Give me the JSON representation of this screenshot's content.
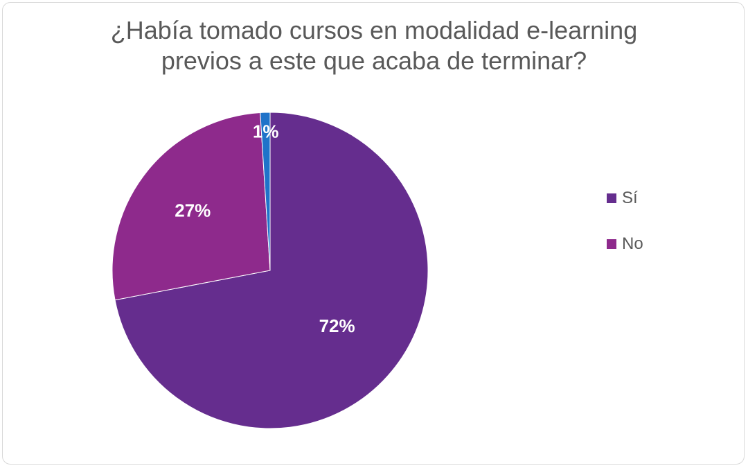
{
  "chart_data": {
    "type": "pie",
    "title": "¿Había tomado cursos en modalidad e-learning previos a este que acaba de terminar?",
    "title_lines": [
      "¿Había tomado cursos en modalidad e-learning",
      "previos a este que acaba de terminar?"
    ],
    "slices": [
      {
        "label": "Sí",
        "value": 72,
        "data_label": "72%",
        "color": "#652d8e"
      },
      {
        "label": "No",
        "value": 27,
        "data_label": "27%",
        "color": "#8e2a8c"
      },
      {
        "label": "",
        "value": 1,
        "data_label": "1%",
        "color": "#1f73c9"
      }
    ],
    "legend": {
      "placement": "right",
      "entries": [
        {
          "label": "Sí",
          "color": "#652d8e"
        },
        {
          "label": "No",
          "color": "#8e2a8c"
        }
      ]
    }
  }
}
